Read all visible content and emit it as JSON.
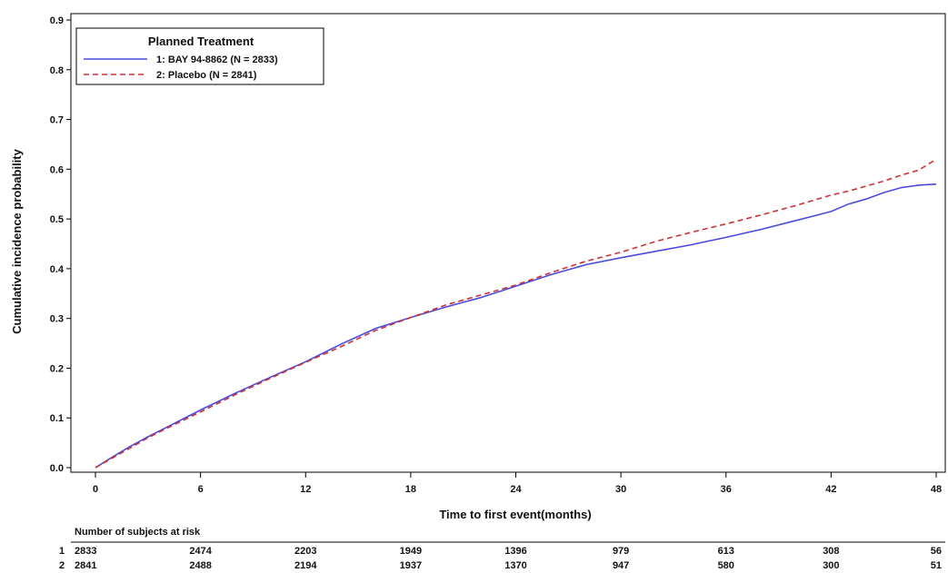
{
  "chart_data": {
    "type": "line",
    "xlabel": "Time to first event(months)",
    "ylabel": "Cumulative incidence probability",
    "xlim": [
      0,
      48
    ],
    "ylim": [
      0,
      0.9
    ],
    "x_ticks": [
      0,
      6,
      12,
      18,
      24,
      30,
      36,
      42,
      48
    ],
    "y_ticks": [
      0.0,
      0.1,
      0.2,
      0.3,
      0.4,
      0.5,
      0.6,
      0.7,
      0.8,
      0.9
    ],
    "y_tick_labels": [
      "0.0",
      "0.1",
      "0.2",
      "0.3",
      "0.4",
      "0.5",
      "0.6",
      "0.7",
      "0.8",
      "0.9"
    ],
    "grid": false,
    "legend": {
      "title": "Planned Treatment",
      "placement": "top-left",
      "entries": [
        "1: BAY 94-8862 (N = 2833)",
        "2: Placebo (N = 2841)"
      ]
    },
    "series": [
      {
        "name": "1: BAY 94-8862 (N = 2833)",
        "color": "#4a4ae0",
        "style": "solid",
        "x": [
          0,
          1,
          2,
          3,
          4,
          6,
          8,
          10,
          12,
          14,
          16,
          18,
          20,
          22,
          24,
          26,
          28,
          30,
          32,
          34,
          36,
          38,
          40,
          42,
          43,
          44,
          45,
          46,
          47,
          48
        ],
        "y": [
          0.0,
          0.022,
          0.043,
          0.062,
          0.08,
          0.116,
          0.15,
          0.182,
          0.213,
          0.248,
          0.28,
          0.302,
          0.323,
          0.342,
          0.365,
          0.388,
          0.408,
          0.422,
          0.435,
          0.448,
          0.463,
          0.479,
          0.497,
          0.515,
          0.53,
          0.54,
          0.553,
          0.563,
          0.568,
          0.57
        ]
      },
      {
        "name": "2: Placebo (N = 2841)",
        "color": "#cc3333",
        "style": "dashed",
        "x": [
          0,
          1,
          2,
          3,
          4,
          6,
          8,
          10,
          12,
          14,
          16,
          18,
          20,
          22,
          24,
          26,
          28,
          30,
          32,
          34,
          36,
          38,
          40,
          42,
          43,
          44,
          45,
          46,
          47,
          48
        ],
        "y": [
          0.0,
          0.02,
          0.04,
          0.06,
          0.078,
          0.112,
          0.147,
          0.18,
          0.212,
          0.243,
          0.276,
          0.302,
          0.327,
          0.347,
          0.367,
          0.392,
          0.415,
          0.433,
          0.455,
          0.473,
          0.49,
          0.508,
          0.527,
          0.548,
          0.556,
          0.566,
          0.576,
          0.588,
          0.598,
          0.62
        ]
      }
    ]
  },
  "risk_table": {
    "title": "Number of subjects at risk",
    "rows": [
      {
        "label": "1",
        "values": [
          2833,
          2474,
          2203,
          1949,
          1396,
          979,
          613,
          308,
          56
        ]
      },
      {
        "label": "2",
        "values": [
          2841,
          2488,
          2194,
          1937,
          1370,
          947,
          580,
          300,
          51
        ]
      }
    ]
  }
}
